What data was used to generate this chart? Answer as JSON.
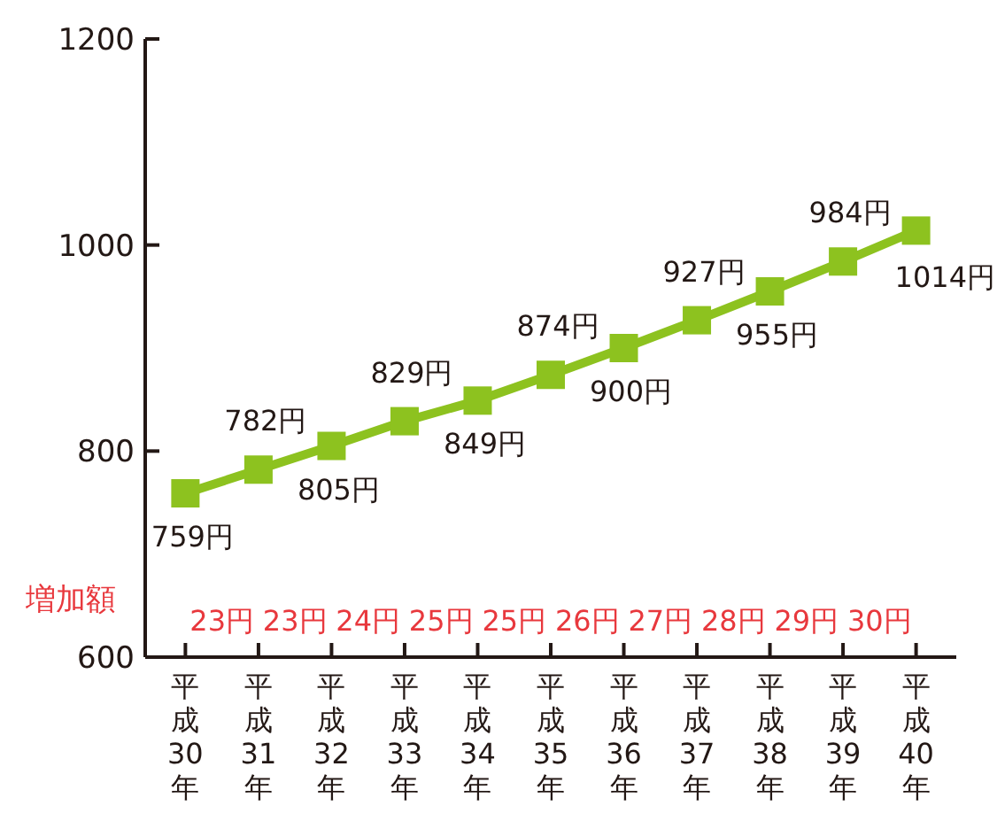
{
  "chart_data": {
    "type": "line",
    "categories": [
      "平成30年",
      "平成31年",
      "平成32年",
      "平成33年",
      "平成34年",
      "平成35年",
      "平成36年",
      "平成37年",
      "平成38年",
      "平成39年",
      "平成40年"
    ],
    "series": [
      {
        "color": "#8dc21f",
        "values": [
          759,
          782,
          805,
          829,
          849,
          874,
          900,
          927,
          955,
          984,
          1014
        ],
        "value_labels": [
          "759円",
          "782円",
          "805円",
          "829円",
          "849円",
          "874円",
          "900円",
          "927円",
          "955円",
          "984円",
          "1014円"
        ]
      }
    ],
    "ylim": [
      600,
      1200
    ],
    "yticks": [
      600,
      800,
      1000,
      1200
    ],
    "marker": "square",
    "line_style": "solid",
    "grid": false,
    "annotations": [
      "増加額",
      "23円",
      "23円",
      "24円",
      "25円",
      "25円",
      "26円",
      "27円",
      "28円",
      "29円",
      "30円"
    ]
  }
}
